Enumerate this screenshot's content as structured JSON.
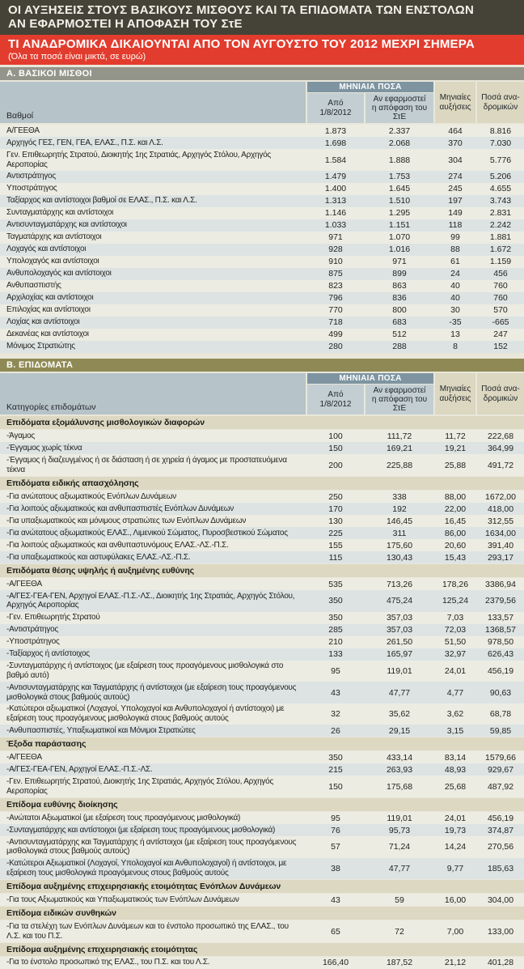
{
  "page": {
    "title_line1": "ΟΙ ΑΥΞΗΣΕΙΣ ΣΤΟΥΣ ΒΑΣΙΚΟΥΣ ΜΙΣΘΟΥΣ ΚΑΙ ΤΑ ΕΠΙΔΟΜΑΤΑ ΤΩΝ ΕΝΣΤΟΛΩΝ",
    "title_line2": "ΑΝ ΕΦΑΡΜΟΣΤΕΙ Η ΑΠΟΦΑΣΗ ΤΟΥ ΣτΕ",
    "subtitle": "ΤΙ ΑΝΑΔΡΟΜΙΚΑ ΔΙΚΑΙΟΥΝΤΑΙ ΑΠΟ ΤΟΝ ΑΥΓΟΥΣΤΟ ΤΟΥ 2012 ΜΕΧΡΙ ΣΗΜΕΡΑ",
    "note": "(Όλα τα ποσά είναι μικτά, σε ευρώ)"
  },
  "colors": {
    "headline_bar": "#454337",
    "subtitle_bar": "#e23c2e",
    "section_a_bar": "#94958a",
    "section_b_bar": "#8f8a55",
    "monthly_band": "#7e95a1",
    "header_blue": "#c2ced2",
    "header_beige": "#dbd7c0"
  },
  "columns": {
    "group_header": "ΜΗΝΙΑΙΑ ΠΟΣΑ",
    "from_line1": "Από",
    "from_line2": "1/8/2012",
    "if_applied_line1": "Αν εφαρμοστεί",
    "if_applied_line2": "η απόφαση του ΣτΕ",
    "monthly_increases": "Μηνιαίες αυξήσεις",
    "retro_line1": "Ποσά ανα-",
    "retro_line2": "δρομικών"
  },
  "section_a": {
    "title": "Α. ΒΑΣΙΚΟΙ ΜΙΣΘΟΙ",
    "label_header": "Βαθμοί",
    "rows": [
      {
        "label": "Α/ΓΕΕΘΑ",
        "values": [
          "1.873",
          "2.337",
          "464",
          "8.816"
        ]
      },
      {
        "label": "Αρχηγός ΓΕΣ, ΓΕΝ, ΓΕΑ, ΕΛΑΣ., Π.Σ. και Λ.Σ.",
        "values": [
          "1.698",
          "2.068",
          "370",
          "7.030"
        ]
      },
      {
        "label": "Γεν. Επιθεωρητής Στρατού, Διοικητής 1ης Στρατιάς, Αρχηγός Στόλου, Αρχηγός Αεροπορίας",
        "values": [
          "1.584",
          "1.888",
          "304",
          "5.776"
        ]
      },
      {
        "label": "Αντιστράτηγος",
        "values": [
          "1.479",
          "1.753",
          "274",
          "5.206"
        ]
      },
      {
        "label": "Υποστράτηγος",
        "values": [
          "1.400",
          "1.645",
          "245",
          "4.655"
        ]
      },
      {
        "label": "Ταξίαρχος και αντίστοιχοι βαθμοί σε ΕΛΑΣ., Π.Σ. και Λ.Σ.",
        "values": [
          "1.313",
          "1.510",
          "197",
          "3.743"
        ]
      },
      {
        "label": "Συνταγματάρχης και αντίστοιχοι",
        "values": [
          "1.146",
          "1.295",
          "149",
          "2.831"
        ]
      },
      {
        "label": "Αντισυνταγματάρχης και αντίστοιχοι",
        "values": [
          "1.033",
          "1.151",
          "118",
          "2.242"
        ]
      },
      {
        "label": "Ταγματάρχης και αντίστοιχοι",
        "values": [
          "971",
          "1.070",
          "99",
          "1.881"
        ]
      },
      {
        "label": "Λοχαγός και αντίστοιχοι",
        "values": [
          "928",
          "1.016",
          "88",
          "1.672"
        ]
      },
      {
        "label": "Υπολοχαγός και αντίστοιχοι",
        "values": [
          "910",
          "971",
          "61",
          "1.159"
        ]
      },
      {
        "label": "Ανθυπολοχαγός και αντίστοιχοι",
        "values": [
          "875",
          "899",
          "24",
          "456"
        ]
      },
      {
        "label": "Ανθυπασπιστής",
        "values": [
          "823",
          "863",
          "40",
          "760"
        ]
      },
      {
        "label": "Αρχιλοχίας και αντίστοιχοι",
        "values": [
          "796",
          "836",
          "40",
          "760"
        ]
      },
      {
        "label": "Επιλοχίας και αντίστοιχοι",
        "values": [
          "770",
          "800",
          "30",
          "570"
        ]
      },
      {
        "label": "Λοχίας και αντίστοιχοι",
        "values": [
          "718",
          "683",
          "-35",
          "-665"
        ]
      },
      {
        "label": "Δεκανέας και αντίστοιχοι",
        "values": [
          "499",
          "512",
          "13",
          "247"
        ]
      },
      {
        "label": "Μόνιμος Στρατιώτης",
        "values": [
          "280",
          "288",
          "8",
          "152"
        ]
      }
    ]
  },
  "section_b": {
    "title": "Β. ΕΠΙΔΟΜΑΤΑ",
    "label_header": "Κατηγορίες επιδομάτων",
    "groups": [
      {
        "header": "Επιδόματα εξομάλυνσης μισθολογικών διαφορών",
        "rows": [
          {
            "label": "-Άγαμος",
            "values": [
              "100",
              "111,72",
              "11,72",
              "222,68"
            ]
          },
          {
            "label": "-Έγγαμος χωρίς τέκνα",
            "values": [
              "150",
              "169,21",
              "19,21",
              "364,99"
            ]
          },
          {
            "label": "-Έγγαμος ή διαζευγμένος ή σε διάσταση ή σε χηρεία ή άγαμος με προστατευόμενα τέκνα",
            "values": [
              "200",
              "225,88",
              "25,88",
              "491,72"
            ]
          }
        ]
      },
      {
        "header": "Επιδόματα ειδικής απασχόλησης",
        "rows": [
          {
            "label": "-Για ανώτατους αξιωματικούς Ενόπλων Δυνάμεων",
            "values": [
              "250",
              "338",
              "88,00",
              "1672,00"
            ]
          },
          {
            "label": "-Για λοιπούς αξιωματικούς και ανθυπασπιστές Ενόπλων Δυνάμεων",
            "values": [
              "170",
              "192",
              "22,00",
              "418,00"
            ]
          },
          {
            "label": "-Για υπαξιωματικούς και μόνιμους στρατιώτες των Ενόπλων Δυνάμεων",
            "values": [
              "130",
              "146,45",
              "16,45",
              "312,55"
            ]
          },
          {
            "label": "-Για ανώτατους αξιωματικούς ΕΛΑΣ., Λιμενικού Σώματος, Πυροσβεστικού Σώματος",
            "values": [
              "225",
              "311",
              "86,00",
              "1634,00"
            ]
          },
          {
            "label": "-Για λοιπούς αξιωματικούς και ανθυπαστυνόμους ΕΛΑΣ.-ΛΣ.-Π.Σ.",
            "values": [
              "155",
              "175,60",
              "20,60",
              "391,40"
            ]
          },
          {
            "label": "-Για υπαξιωματικούς και αστυφύλακες ΕΛΑΣ.-ΛΣ.-Π.Σ.",
            "values": [
              "115",
              "130,43",
              "15,43",
              "293,17"
            ]
          }
        ]
      },
      {
        "header": "Επιδόματα θέσης υψηλής ή αυξημένης ευθύνης",
        "rows": [
          {
            "label": "-Α/ΓΕΕΘΑ",
            "values": [
              "535",
              "713,26",
              "178,26",
              "3386,94"
            ]
          },
          {
            "label": "-Α/ΓΕΣ-ΓΕΑ-ΓΕΝ, Αρχηγοί ΕΛΑΣ.-Π.Σ.-ΛΣ., Διοικητής 1ης Στρατιάς, Αρχηγός Στόλου, Αρχηγός Αεροπορίας",
            "values": [
              "350",
              "475,24",
              "125,24",
              "2379,56"
            ]
          },
          {
            "label": "-Γεν. Επιθεωρητής Στρατού",
            "values": [
              "350",
              "357,03",
              "7,03",
              "133,57"
            ]
          },
          {
            "label": "-Αντιστράτηγος",
            "values": [
              "285",
              "357,03",
              "72,03",
              "1368,57"
            ]
          },
          {
            "label": "-Υποστράτηγος",
            "values": [
              "210",
              "261,50",
              "51,50",
              "978,50"
            ]
          },
          {
            "label": "-Ταξίαρχος ή αντίστοιχος",
            "values": [
              "133",
              "165,97",
              "32,97",
              "626,43"
            ]
          },
          {
            "label": "-Συνταγματάρχης ή αντίστοιχος (με εξαίρεση τους προαγόμενους μισθολογικά στο βαθμό αυτό)",
            "values": [
              "95",
              "119,01",
              "24,01",
              "456,19"
            ]
          },
          {
            "label": "-Αντισυνταγματάρχης και Ταγματάρχης ή αντίστοιχοι (με εξαίρεση τους προαγόμενους μισθολογικά στους βαθμούς αυτούς)",
            "values": [
              "43",
              "47,77",
              "4,77",
              "90,63"
            ]
          },
          {
            "label": "-Κατώτεροι αξιωματικοί (Λοχαγοί, Υπολοχαγοί και Ανθυπολοχαγοί ή αντίστοιχοι) με εξαίρεση τους προαγόμενους μισθολογικά στους βαθμούς αυτούς",
            "values": [
              "32",
              "35,62",
              "3,62",
              "68,78"
            ]
          },
          {
            "label": "-Ανθυπασπιστές, Υπαξιωματικοί και Μόνιμοι Στρατιώτες",
            "values": [
              "26",
              "29,15",
              "3,15",
              "59,85"
            ]
          }
        ]
      },
      {
        "header": "Έξοδα παράστασης",
        "rows": [
          {
            "label": "-Α/ΓΕΕΘΑ",
            "values": [
              "350",
              "433,14",
              "83,14",
              "1579,66"
            ]
          },
          {
            "label": "-Α/ΓΕΣ-ΓΕΑ-ΓΕΝ, Αρχηγοί ΕΛΑΣ.-Π.Σ.-ΛΣ.",
            "values": [
              "215",
              "263,93",
              "48,93",
              "929,67"
            ]
          },
          {
            "label": "-Γεν. Επιθεωρητής Στρατού, Διοικητής 1ης Στρατιάς, Αρχηγός Στόλου, Αρχηγός Αεροπορίας",
            "values": [
              "150",
              "175,68",
              "25,68",
              "487,92"
            ]
          }
        ]
      },
      {
        "header": "Επίδομα ευθύνης διοίκησης",
        "rows": [
          {
            "label": "-Ανώτατοι Αξιωματικοί (με εξαίρεση τους προαγόμενους μισθολογικά)",
            "values": [
              "95",
              "119,01",
              "24,01",
              "456,19"
            ]
          },
          {
            "label": "-Συνταγματάρχης και αντίστοιχοι (με εξαίρεση τους προαγόμενους μισθολογικά)",
            "values": [
              "76",
              "95,73",
              "19,73",
              "374,87"
            ]
          },
          {
            "label": "-Αντισυνταγματάρχης και Ταγματάρχης ή αντίστοιχοι (με εξαίρεση τους προαγόμενους μισθολογικά στους βαθμούς αυτούς)",
            "values": [
              "57",
              "71,24",
              "14,24",
              "270,56"
            ]
          },
          {
            "label": "-Κατώτεροι Αξιωματικοί (Λοχαγοί, Υπολοχαγοί και Ανθυπολοχαγοί) ή αντίστοιχοι, με εξαίρεση τους μισθολογικά προαγόμενους στους βαθμούς αυτούς",
            "values": [
              "38",
              "47,77",
              "9,77",
              "185,63"
            ]
          }
        ]
      },
      {
        "header": "Επίδομα αυξημένης επιχειρησιακής ετοιμότητας Ενόπλων Δυνάμεων",
        "rows": [
          {
            "label": "-Για τους Αξιωματικούς και Υπαξιωματικούς των Ενόπλων Δυνάμεων",
            "values": [
              "43",
              "59",
              "16,00",
              "304,00"
            ]
          }
        ]
      },
      {
        "header": "Επίδομα ειδικών συνθηκών",
        "rows": [
          {
            "label": "-Για τα στελέχη των Ενόπλων Δυνάμεων και το ένστολο προσωπικό της ΕΛΑΣ., του Λ.Σ. και του Π.Σ.",
            "values": [
              "65",
              "72",
              "7,00",
              "133,00"
            ]
          }
        ]
      },
      {
        "header": "Επίδομα αυξημένης επιχειρησιακής ετοιμότητας",
        "rows": [
          {
            "label": "-Για το ένστολο προσωπικό της ΕΛΑΣ., του Π.Σ. και του Λ.Σ.",
            "values": [
              "166,40",
              "187,52",
              "21,12",
              "401,28"
            ]
          }
        ]
      }
    ]
  }
}
